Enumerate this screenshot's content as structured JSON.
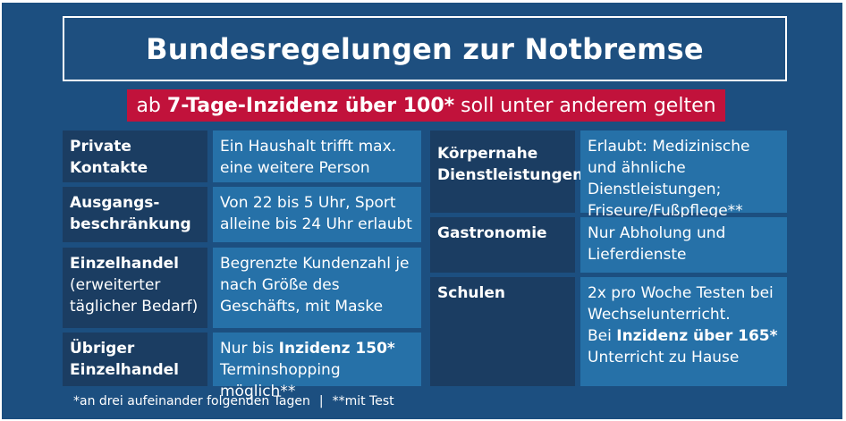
{
  "title": "Bundesregelungen zur Notbremse",
  "subtitle": {
    "prefix": "ab ",
    "bold": "7-Tage-Inzidenz über 100*",
    "suffix": " soll unter anderem gelten"
  },
  "left_rows": [
    {
      "label_lines": [
        "Private Kontakte"
      ],
      "value_parts": [
        {
          "t": "Ein Haushalt trifft max. eine weitere Person",
          "b": false
        }
      ]
    },
    {
      "label_lines": [
        "Ausgangs-",
        "beschränkung"
      ],
      "value_parts": [
        {
          "t": "Von 22 bis 5 Uhr, Sport alleine bis 24 Uhr erlaubt",
          "b": false
        }
      ]
    },
    {
      "label": "Einzelhandel",
      "label_note": "(erweiterter täglicher Bedarf)",
      "value_parts": [
        {
          "t": "Begrenzte Kundenzahl je nach Größe des Geschäfts, mit Maske",
          "b": false
        }
      ]
    },
    {
      "label_lines": [
        "Übriger",
        "Einzelhandel"
      ],
      "value_parts": [
        {
          "t": "Nur bis ",
          "b": false
        },
        {
          "t": "Inzidenz 150*",
          "b": true
        },
        {
          "t": " Terminshopping möglich**",
          "b": false
        }
      ]
    }
  ],
  "right_rows": [
    {
      "label_lines": [
        "Körpernahe",
        "Dienstleistungen"
      ],
      "value_parts": [
        {
          "t": "Erlaubt: Medizinische und ähnliche Dienstleistungen; Friseure/Fußpflege**",
          "b": false
        }
      ]
    },
    {
      "label_lines": [
        "Gastronomie"
      ],
      "value_parts": [
        {
          "t": "Nur Abholung und Lieferdienste",
          "b": false
        }
      ]
    },
    {
      "label_lines": [
        "Schulen"
      ],
      "value_parts": [
        {
          "t": "2x pro Woche Testen bei Wechselunterricht.",
          "b": false
        },
        {
          "t": "Bei ",
          "b": false,
          "br": true
        },
        {
          "t": "Inzidenz über 165*",
          "b": true
        },
        {
          "t": " Unterricht zu Hause",
          "b": false
        }
      ]
    }
  ],
  "footer": {
    "note1": "*an drei aufeinander folgenden Tagen",
    "separator": "|",
    "note2": "**mit Test"
  },
  "colors": {
    "background": "#1c4f80",
    "label_cell": "#1b3d62",
    "value_cell": "#2671a8",
    "accent": "#c1123b",
    "text": "#ffffff"
  }
}
